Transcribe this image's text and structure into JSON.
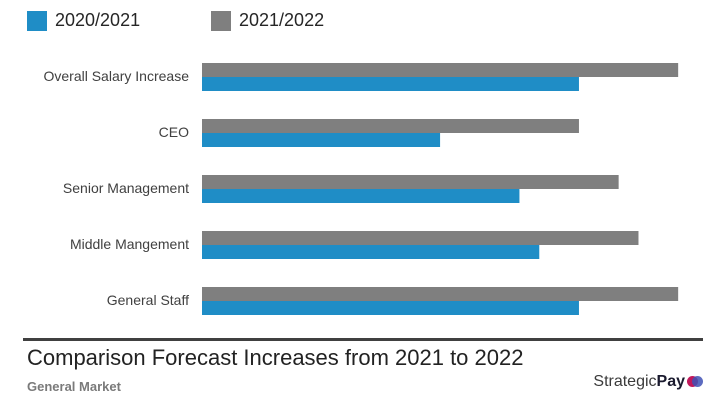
{
  "chart_data": {
    "type": "bar",
    "orientation": "horizontal",
    "title": "Comparison Forecast Increases from 2021 to 2022",
    "subtitle": "General Market",
    "xlabel": "",
    "ylabel": "",
    "xlim": [
      0,
      5
    ],
    "grid": false,
    "legend_position": "top-left",
    "categories": [
      "Overall Salary Increase",
      "CEO",
      "Senior Management",
      "Middle Mangement",
      "General Staff"
    ],
    "series": [
      {
        "name": "2020/2021",
        "color": "#1f8dc6",
        "values": [
          3.8,
          2.4,
          3.2,
          3.4,
          3.8
        ]
      },
      {
        "name": "2021/2022",
        "color": "#7f7f7f",
        "values": [
          4.8,
          3.8,
          4.2,
          4.4,
          4.8
        ]
      }
    ]
  },
  "brand": {
    "light": "Strategic",
    "bold": "Pay"
  }
}
